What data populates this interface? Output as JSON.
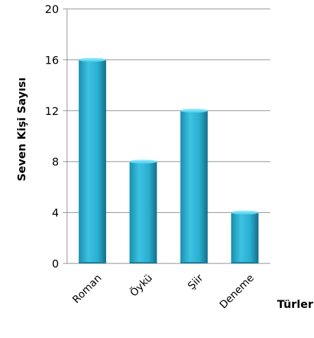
{
  "chart_data": {
    "type": "bar",
    "categories": [
      "Roman",
      "Öykü",
      "Şiir",
      "Deneme"
    ],
    "values": [
      16,
      8,
      12,
      4
    ],
    "title": "",
    "xlabel": "Türler",
    "ylabel": "Seven Kişi Sayısı",
    "ylim": [
      0,
      20
    ],
    "yticks": [
      0,
      4,
      8,
      12,
      16,
      20
    ],
    "grid": true,
    "legend": "none",
    "colors": {
      "bar": "#2fb4d4",
      "bar_light": "#7fe0f4",
      "bar_dark": "#177d99",
      "grid": "#8c8c8c"
    }
  }
}
